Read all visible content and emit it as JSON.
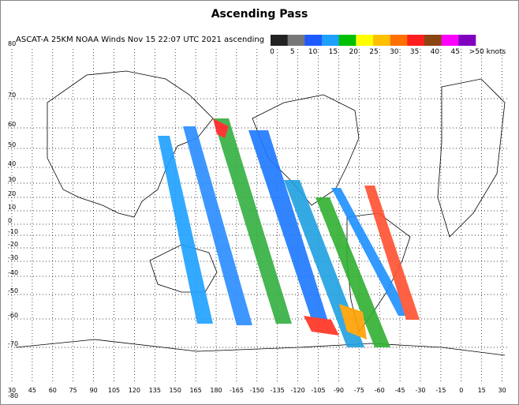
{
  "title": "Ascending Pass",
  "subtitle": "ASCAT-A 25KM NOAA Winds Nov 15 22:07 UTC 2021 ascending",
  "legend": {
    "labels": [
      "0",
      "5",
      "10",
      "15",
      "20",
      "25",
      "30",
      "35",
      "40",
      "45",
      ">50 knots"
    ],
    "colors": [
      "#222222",
      "#777777",
      "#1e5aff",
      "#1ea0ff",
      "#00c000",
      "#ffff00",
      "#ffc000",
      "#ff7000",
      "#ff1e1e",
      "#8b4513",
      "#ff00ff",
      "#8000c0"
    ]
  },
  "lat_labels": [
    "80",
    "70",
    "60",
    "50",
    "40",
    "30",
    "20",
    "10",
    "0",
    "-10",
    "-20",
    "-30",
    "-40",
    "-50",
    "-60",
    "-70",
    "-80"
  ],
  "lon_labels": [
    "30",
    "45",
    "60",
    "75",
    "90",
    "105",
    "120",
    "135",
    "150",
    "165",
    "180",
    "-165",
    "-150",
    "-135",
    "-120",
    "-105",
    "-90",
    "-75",
    "-60",
    "-45",
    "-30",
    "-15",
    "0",
    "15",
    "30"
  ]
}
